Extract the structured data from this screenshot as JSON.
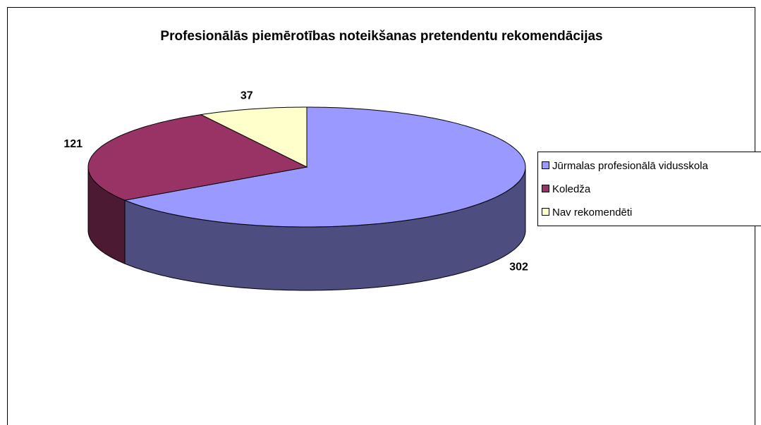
{
  "chart_data": {
    "type": "pie",
    "title": "Profesionālās piemērotības noteikšanas pretendentu rekomendācijas",
    "categories": [
      "Jūrmalas profesionālā vidusskola",
      "Koledža",
      "Nav rekomendēti"
    ],
    "values": [
      302,
      121,
      37
    ],
    "colors": [
      "#9999ff",
      "#993366",
      "#ffffcc"
    ],
    "legend": "right"
  }
}
